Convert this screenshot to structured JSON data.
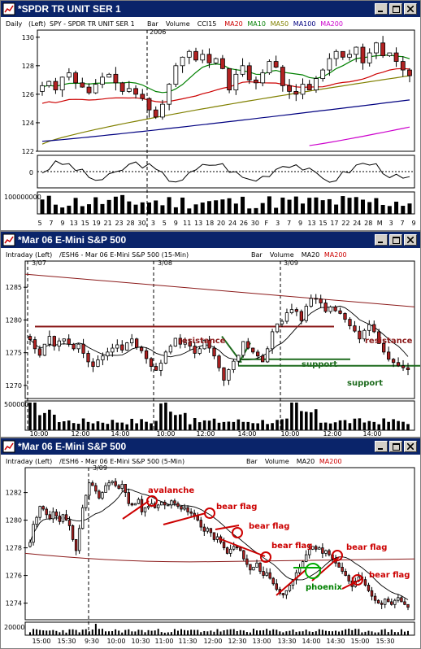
{
  "windows": [
    {
      "title": "*SPDR TR UNIT SER 1",
      "header": {
        "period": "Daily",
        "axis": "(Left)",
        "symbol": "SPY - SPDR TR UNIT SER 1",
        "items": [
          {
            "text": "Bar",
            "color": "#000000"
          },
          {
            "text": "Volume",
            "color": "#000000"
          },
          {
            "text": "CCI15",
            "color": "#000000"
          },
          {
            "text": "MA20",
            "color": "#cc0000"
          },
          {
            "text": "MA10",
            "color": "#008000"
          },
          {
            "text": "MA50",
            "color": "#808000"
          },
          {
            "text": "MA100",
            "color": "#000080"
          },
          {
            "text": "MA200",
            "color": "#cc00cc"
          }
        ]
      },
      "year_label": "2006",
      "volume_label": "100000000",
      "indicator_zero_label": "0",
      "x_labels": [
        "5",
        "7",
        "9",
        "13",
        "15",
        "19",
        "21",
        "23",
        "28",
        "30",
        "3",
        "5",
        "9",
        "11",
        "13",
        "18",
        "20",
        "24",
        "26",
        "30",
        "F",
        "3",
        "7",
        "9",
        "13",
        "15",
        "17",
        "22",
        "24",
        "28",
        "M",
        "3",
        "7",
        "9"
      ]
    },
    {
      "title": "*Mar 06  E-Mini S&P 500",
      "header": {
        "period": "Intraday",
        "axis": "(Left)",
        "symbol": "/ESH6 - Mar 06  E-Mini S&P 500  (15-Min)",
        "items": [
          {
            "text": "Bar",
            "color": "#000000"
          },
          {
            "text": "Volume",
            "color": "#000000"
          },
          {
            "text": "MA20",
            "color": "#000000"
          },
          {
            "text": "MA200",
            "color": "#cc0000"
          }
        ]
      },
      "date_labels": [
        "3/07",
        "3/08",
        "3/09"
      ],
      "volume_label": "500000",
      "x_labels": [
        "10:00",
        "12:00",
        "14:00",
        "10:00",
        "12:00",
        "14:00",
        "10:00",
        "12:00",
        "14:00"
      ],
      "annotations": [
        {
          "text": "resistance",
          "color": "#8b1a1a"
        },
        {
          "text": "resistance",
          "color": "#8b1a1a"
        },
        {
          "text": "support",
          "color": "#1e6b1e"
        },
        {
          "text": "support",
          "color": "#1e6b1e"
        }
      ]
    },
    {
      "title": "*Mar 06  E-Mini S&P 500",
      "header": {
        "period": "Intraday",
        "axis": "(Left)",
        "symbol": "/ESH6 - Mar 06  E-Mini S&P 500  (5-Min)",
        "items": [
          {
            "text": "Bar",
            "color": "#000000"
          },
          {
            "text": "Volume",
            "color": "#000000"
          },
          {
            "text": "MA20",
            "color": "#000000"
          },
          {
            "text": "MA200",
            "color": "#cc0000"
          }
        ]
      },
      "date_labels": [
        "3/09"
      ],
      "volume_label": "20000",
      "x_labels": [
        "15:00",
        "15:30",
        "9:30",
        "10:00",
        "10:30",
        "11:00",
        "11:30",
        "12:00",
        "12:30",
        "13:00",
        "13:30",
        "14:00",
        "14:30",
        "15:00",
        "15:30"
      ],
      "annotations": [
        {
          "text": "avalanche",
          "color": "#cc0000"
        },
        {
          "text": "bear flag",
          "color": "#cc0000"
        },
        {
          "text": "bear flag",
          "color": "#cc0000"
        },
        {
          "text": "bear flag",
          "color": "#cc0000"
        },
        {
          "text": "bear flag",
          "color": "#cc0000"
        },
        {
          "text": "bear flag",
          "color": "#cc0000"
        },
        {
          "text": "phoenix",
          "color": "#008000"
        }
      ]
    }
  ],
  "chart_data": [
    {
      "type": "candlestick",
      "subject": "SPY daily",
      "y_tick_labels": [
        "122",
        "124",
        "126",
        "128",
        "130"
      ],
      "ylim": [
        122,
        130.5
      ],
      "x_tick_labels": [
        "5",
        "7",
        "9",
        "13",
        "15",
        "19",
        "21",
        "23",
        "28",
        "30",
        "3",
        "5",
        "9",
        "11",
        "13",
        "18",
        "20",
        "24",
        "26",
        "30",
        "F",
        "3",
        "7",
        "9",
        "13",
        "15",
        "17",
        "22",
        "24",
        "28",
        "M",
        "3",
        "7",
        "9"
      ],
      "closes": [
        126.6,
        126.9,
        126.3,
        127.2,
        127.5,
        126.8,
        126.5,
        126.1,
        126.7,
        127.2,
        127.4,
        126.8,
        126.2,
        126.4,
        126.0,
        125.7,
        124.9,
        124.4,
        125.3,
        126.7,
        128.0,
        128.6,
        129.0,
        128.4,
        128.8,
        128.2,
        128.5,
        127.8,
        126.3,
        127.4,
        128.0,
        127.0,
        126.8,
        127.5,
        128.3,
        127.9,
        126.6,
        126.2,
        126.0,
        126.7,
        126.3,
        127.1,
        127.7,
        128.5,
        129.0,
        128.6,
        128.8,
        129.3,
        128.2,
        128.9,
        129.6,
        128.7,
        128.9,
        128.3,
        127.7,
        127.3
      ],
      "moving_averages": [
        {
          "name": "MA10",
          "color": "#008000",
          "from": 126.4,
          "to": 128.6
        },
        {
          "name": "MA20",
          "color": "#cc0000",
          "from": 125.0,
          "to": 128.0
        },
        {
          "name": "MA50",
          "color": "#808000",
          "from": 122.5,
          "to": 127.3
        },
        {
          "name": "MA100",
          "color": "#000080",
          "from": 122.7,
          "to": 125.6
        },
        {
          "name": "MA200",
          "color": "#cc00cc",
          "from": 122.4,
          "to": 123.7
        }
      ],
      "indicator": "CCI15",
      "volume_label": "100000000"
    },
    {
      "type": "candlestick",
      "subject": "/ESH6 15-Min",
      "y_tick_labels": [
        "1270",
        "1275",
        "1280",
        "1285"
      ],
      "ylim": [
        1268,
        1289
      ],
      "x_tick_labels": [
        "10:00",
        "12:00",
        "14:00",
        "10:00",
        "12:00",
        "14:00",
        "10:00",
        "12:00",
        "14:00"
      ],
      "resistance": 1279,
      "support": [
        1274,
        1273
      ],
      "closes": [
        1277.0,
        1275.6,
        1274.6,
        1276.3,
        1277.5,
        1276.0,
        1276.8,
        1277.1,
        1276.3,
        1275.6,
        1276.3,
        1274.9,
        1273.6,
        1272.9,
        1273.9,
        1274.5,
        1275.1,
        1275.7,
        1276.2,
        1275.4,
        1276.5,
        1277.1,
        1275.8,
        1275.3,
        1274.1,
        1272.9,
        1272.3,
        1273.4,
        1275.1,
        1276.0,
        1277.2,
        1276.3,
        1276.6,
        1276.0,
        1274.9,
        1275.6,
        1276.9,
        1275.7,
        1274.5,
        1272.7,
        1270.8,
        1272.4,
        1273.7,
        1274.6,
        1276.7,
        1275.7,
        1275.1,
        1274.5,
        1273.6,
        1275.6,
        1278.2,
        1279.4,
        1279.8,
        1281.1,
        1281.6,
        1281.3,
        1279.9,
        1282.1,
        1283.3,
        1283.2,
        1282.6,
        1281.3,
        1282.0,
        1281.4,
        1281.0,
        1280.1,
        1279.1,
        1278.3,
        1277.1,
        1278.4,
        1279.3,
        1278.2,
        1276.4,
        1275.1,
        1274.0,
        1273.5,
        1273.0,
        1272.7,
        1272.4
      ],
      "ma200": {
        "from": 1287,
        "to": 1282
      },
      "volume_label": "500000"
    },
    {
      "type": "candlestick",
      "subject": "/ESH6 5-Min",
      "y_tick_labels": [
        "1274",
        "1276",
        "1278",
        "1280",
        "1282"
      ],
      "ylim": [
        1272.8,
        1283.8
      ],
      "x_tick_labels": [
        "15:00",
        "15:30",
        "9:30",
        "10:00",
        "10:30",
        "11:00",
        "11:30",
        "12:00",
        "12:30",
        "13:00",
        "13:30",
        "14:00",
        "14:30",
        "15:00",
        "15:30"
      ],
      "closes": [
        1278.4,
        1279.7,
        1280.2,
        1281.0,
        1280.8,
        1280.4,
        1280.1,
        1280.6,
        1280.3,
        1279.9,
        1280.4,
        1280.0,
        1279.6,
        1278.6,
        1277.8,
        1279.4,
        1280.9,
        1281.8,
        1282.7,
        1282.5,
        1282.1,
        1281.6,
        1282.0,
        1282.5,
        1282.7,
        1282.8,
        1282.5,
        1282.3,
        1282.6,
        1282.0,
        1281.2,
        1281.1,
        1281.2,
        1281.5,
        1280.6,
        1280.9,
        1281.0,
        1281.2,
        1280.9,
        1281.1,
        1281.3,
        1281.1,
        1281.1,
        1281.4,
        1281.2,
        1281.0,
        1280.8,
        1280.9,
        1280.6,
        1280.5,
        1280.3,
        1280.0,
        1279.5,
        1279.2,
        1279.4,
        1279.1,
        1278.6,
        1278.8,
        1278.4,
        1278.0,
        1277.6,
        1277.9,
        1278.1,
        1278.0,
        1277.8,
        1277.2,
        1276.8,
        1276.4,
        1276.6,
        1276.9,
        1276.3,
        1276.0,
        1276.2,
        1275.8,
        1275.4,
        1275.0,
        1274.7,
        1274.6,
        1274.9,
        1275.3,
        1275.7,
        1276.2,
        1276.6,
        1277.0,
        1277.5,
        1277.9,
        1278.1,
        1277.9,
        1278.0,
        1277.6,
        1277.8,
        1277.5,
        1277.2,
        1276.9,
        1276.6,
        1276.3,
        1276.0,
        1275.6,
        1275.2,
        1275.6,
        1275.9,
        1275.7,
        1275.3,
        1274.9,
        1274.5,
        1274.2,
        1274.0,
        1273.9,
        1274.3,
        1274.1,
        1273.9,
        1274.2,
        1274.4,
        1274.1,
        1273.9,
        1273.7
      ],
      "ma20": {
        "from": 1278.4,
        "to": 1275.0
      },
      "ma200": {
        "level": 1277.1
      },
      "volume_label": "20000"
    }
  ]
}
